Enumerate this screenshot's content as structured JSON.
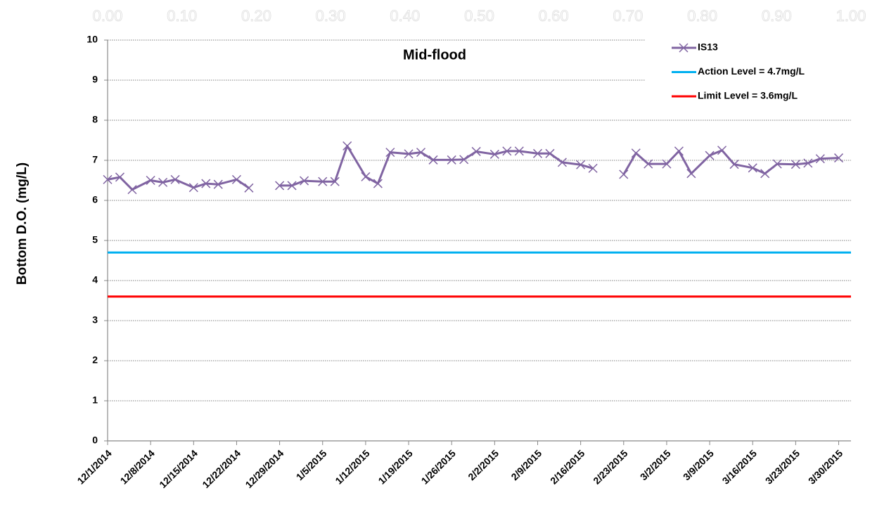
{
  "chart_data": {
    "type": "line",
    "title": "Mid-flood",
    "y_label": "Bottom D.O. (mg/L)",
    "x": [
      "12/1/2014",
      "12/3/2014",
      "12/5/2014",
      "12/8/2014",
      "12/10/2014",
      "12/12/2014",
      "12/15/2014",
      "12/17/2014",
      "12/19/2014",
      "12/22/2014",
      "12/24/2014",
      "12/26/2014",
      "12/29/2014",
      "12/31/2014",
      "1/2/2015",
      "1/5/2015",
      "1/7/2015",
      "1/9/2015",
      "1/12/2015",
      "1/14/2015",
      "1/16/2015",
      "1/19/2015",
      "1/21/2015",
      "1/23/2015",
      "1/26/2015",
      "1/28/2015",
      "1/30/2015",
      "2/2/2015",
      "2/4/2015",
      "2/6/2015",
      "2/9/2015",
      "2/11/2015",
      "2/13/2015",
      "2/16/2015",
      "2/18/2015",
      "2/20/2015",
      "2/23/2015",
      "2/25/2015",
      "2/27/2015",
      "3/2/2015",
      "3/4/2015",
      "3/6/2015",
      "3/9/2015",
      "3/11/2015",
      "3/13/2015",
      "3/16/2015",
      "3/18/2015",
      "3/20/2015",
      "3/23/2015",
      "3/25/2015",
      "3/27/2015",
      "3/30/2015"
    ],
    "series": [
      {
        "name": "IS13",
        "color": "#8064a2",
        "values": [
          6.52,
          6.58,
          6.27,
          6.5,
          6.45,
          6.52,
          6.32,
          6.42,
          6.4,
          6.52,
          6.31,
          null,
          6.37,
          6.37,
          6.49,
          6.47,
          6.47,
          7.36,
          6.59,
          6.42,
          7.2,
          7.16,
          7.2,
          7.01,
          7.01,
          7.02,
          7.22,
          7.15,
          7.23,
          7.23,
          7.17,
          7.17,
          6.95,
          6.89,
          6.8,
          null,
          6.65,
          7.18,
          6.91,
          6.91,
          7.23,
          6.67,
          7.12,
          7.25,
          6.9,
          6.81,
          6.67,
          6.91,
          6.9,
          6.93,
          7.04,
          7.06
        ]
      }
    ],
    "reference_lines": [
      {
        "name": "Action Level = 4.7mg/L",
        "value": 4.7,
        "color": "#00b0f0"
      },
      {
        "name": "Limit Level = 3.6mg/L",
        "value": 3.6,
        "color": "#ff0000"
      }
    ],
    "xlim": [
      "12/1/2014",
      "4/1/2015"
    ],
    "xticks": [
      "12/1/2014",
      "12/8/2014",
      "12/15/2014",
      "12/22/2014",
      "12/29/2014",
      "1/5/2015",
      "1/12/2015",
      "1/19/2015",
      "1/26/2015",
      "2/2/2015",
      "2/9/2015",
      "2/16/2015",
      "2/23/2015",
      "3/2/2015",
      "3/9/2015",
      "3/16/2015",
      "3/23/2015",
      "3/30/2015"
    ],
    "ylim": [
      0,
      10
    ],
    "yticks": [
      0,
      1,
      2,
      3,
      4,
      5,
      6,
      7,
      8,
      9,
      10
    ],
    "x2lim": [
      0,
      1
    ],
    "x2ticks": [
      {
        "value": 0,
        "label": "0.00"
      },
      {
        "value": 0.1,
        "label": "0.10"
      },
      {
        "value": 0.2,
        "label": "0.20"
      },
      {
        "value": 0.3,
        "label": "0.30"
      },
      {
        "value": 0.4,
        "label": "0.40"
      },
      {
        "value": 0.5,
        "label": "0.50"
      },
      {
        "value": 0.6,
        "label": "0.60"
      },
      {
        "value": 0.7,
        "label": "0.70"
      },
      {
        "value": 0.8,
        "label": "0.80"
      },
      {
        "value": 0.9,
        "label": "0.90"
      },
      {
        "value": 1,
        "label": "1.00"
      }
    ],
    "grid": true,
    "legend": "upper right"
  }
}
